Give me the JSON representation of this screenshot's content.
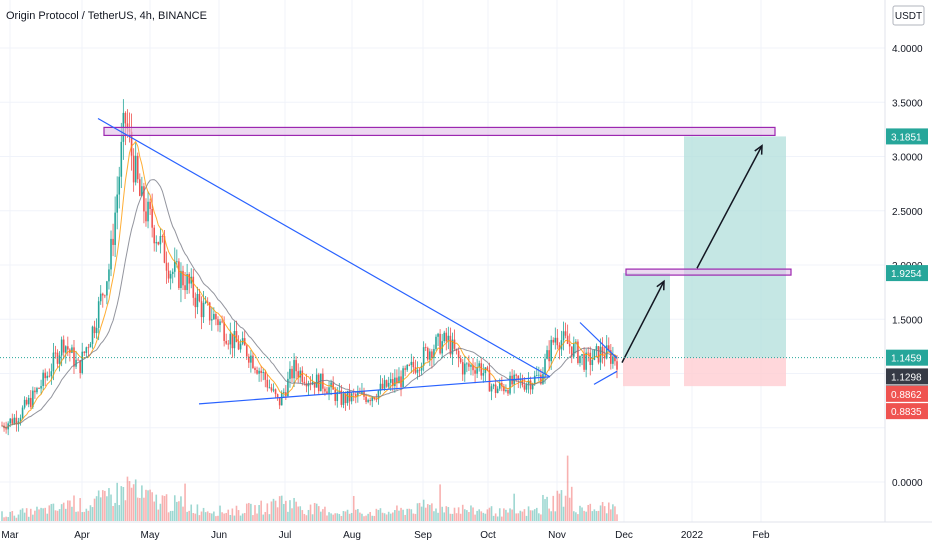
{
  "header": {
    "title": "Origin Protocol / TetherUS, 4h, BINANCE",
    "currency": "USDT"
  },
  "colors": {
    "up": "#26a69a",
    "down": "#ef5350",
    "trendline": "#2962ff",
    "zone": "#9c27b0",
    "target_fill": "#b2dfdb",
    "stop_fill": "#ffcdd2",
    "badge_green": "#26a69a",
    "badge_dark": "#363a45",
    "badge_red": "#ef5350"
  },
  "chart_data": {
    "type": "candlestick",
    "x_ticks": [
      "Mar",
      "Apr",
      "May",
      "Jun",
      "Jul",
      "Aug",
      "Sep",
      "Oct",
      "Nov",
      "Dec",
      "2022",
      "Feb"
    ],
    "y_ticks": [
      "4.0000",
      "3.5000",
      "3.0000",
      "2.5000",
      "2.0000",
      "1.5000",
      "0.0000"
    ],
    "ylim": [
      -0.35,
      4.3
    ],
    "price_path": [
      [
        "Mar",
        0.52
      ],
      [
        "Mar",
        0.6
      ],
      [
        "Mar",
        0.78
      ],
      [
        "Mar",
        1.0
      ],
      [
        "Mar",
        1.3
      ],
      [
        "Mar",
        1.05
      ],
      [
        "Apr",
        1.45
      ],
      [
        "Apr",
        2.0
      ],
      [
        "Apr",
        3.35
      ],
      [
        "Apr",
        2.6
      ],
      [
        "Apr",
        2.3
      ],
      [
        "Apr",
        1.95
      ],
      [
        "Apr",
        1.85
      ],
      [
        "Apr",
        1.6
      ],
      [
        "May",
        1.5
      ],
      [
        "May",
        1.3
      ],
      [
        "May",
        1.2
      ],
      [
        "May",
        0.98
      ],
      [
        "May",
        0.72
      ],
      [
        "Jun",
        1.05
      ],
      [
        "Jun",
        0.95
      ],
      [
        "Jun",
        0.9
      ],
      [
        "Jul",
        0.76
      ],
      [
        "Jul",
        0.78
      ],
      [
        "Jul",
        0.8
      ],
      [
        "Aug",
        0.88
      ],
      [
        "Aug",
        0.95
      ],
      [
        "Aug",
        1.1
      ],
      [
        "Sep",
        1.25
      ],
      [
        "Sep",
        1.3
      ],
      [
        "Sep",
        1.05
      ],
      [
        "Sep",
        1.08
      ],
      [
        "Oct",
        0.85
      ],
      [
        "Oct",
        0.9
      ],
      [
        "Oct",
        0.92
      ],
      [
        "Nov",
        0.97
      ],
      [
        "Nov",
        1.35
      ],
      [
        "Nov",
        1.25
      ],
      [
        "Nov",
        1.1
      ],
      [
        "Nov",
        1.2
      ],
      [
        "Nov",
        1.13
      ]
    ],
    "volume": [
      0.2,
      0.25,
      0.3,
      0.35,
      0.55,
      0.45,
      0.6,
      0.8,
      1.0,
      0.7,
      0.6,
      0.5,
      0.4,
      0.35,
      0.3,
      0.3,
      0.35,
      0.4,
      0.6,
      0.5,
      0.35,
      0.3,
      0.25,
      0.25,
      0.25,
      0.25,
      0.3,
      0.35,
      0.45,
      0.4,
      0.35,
      0.3,
      0.3,
      0.25,
      0.25,
      0.3,
      0.55,
      0.7,
      0.4,
      0.35,
      0.4
    ],
    "drawings": {
      "resistance_zone_upper": 3.1851,
      "resistance_zone_mid": 1.9254,
      "downtrend_start": 3.35,
      "support_start": 0.72,
      "support_end": 0.97,
      "target_1": 1.9254,
      "target_2": 3.1851,
      "entry": 1.1459,
      "stop": 0.8835
    },
    "price_labels": [
      {
        "value": 3.1851,
        "text": "3.1851",
        "kind": "green"
      },
      {
        "value": 1.9254,
        "text": "1.9254",
        "kind": "green"
      },
      {
        "value": 1.1459,
        "text": "1.1459",
        "kind": "green"
      },
      {
        "value": 1.1298,
        "text": "1.1298",
        "kind": "dark"
      },
      {
        "value": 1.1298,
        "text": "1.1298",
        "kind": "dark"
      },
      {
        "value": 0.8862,
        "text": "0.8862",
        "kind": "red"
      },
      {
        "value": 0.8835,
        "text": "0.8835",
        "kind": "red"
      }
    ]
  }
}
